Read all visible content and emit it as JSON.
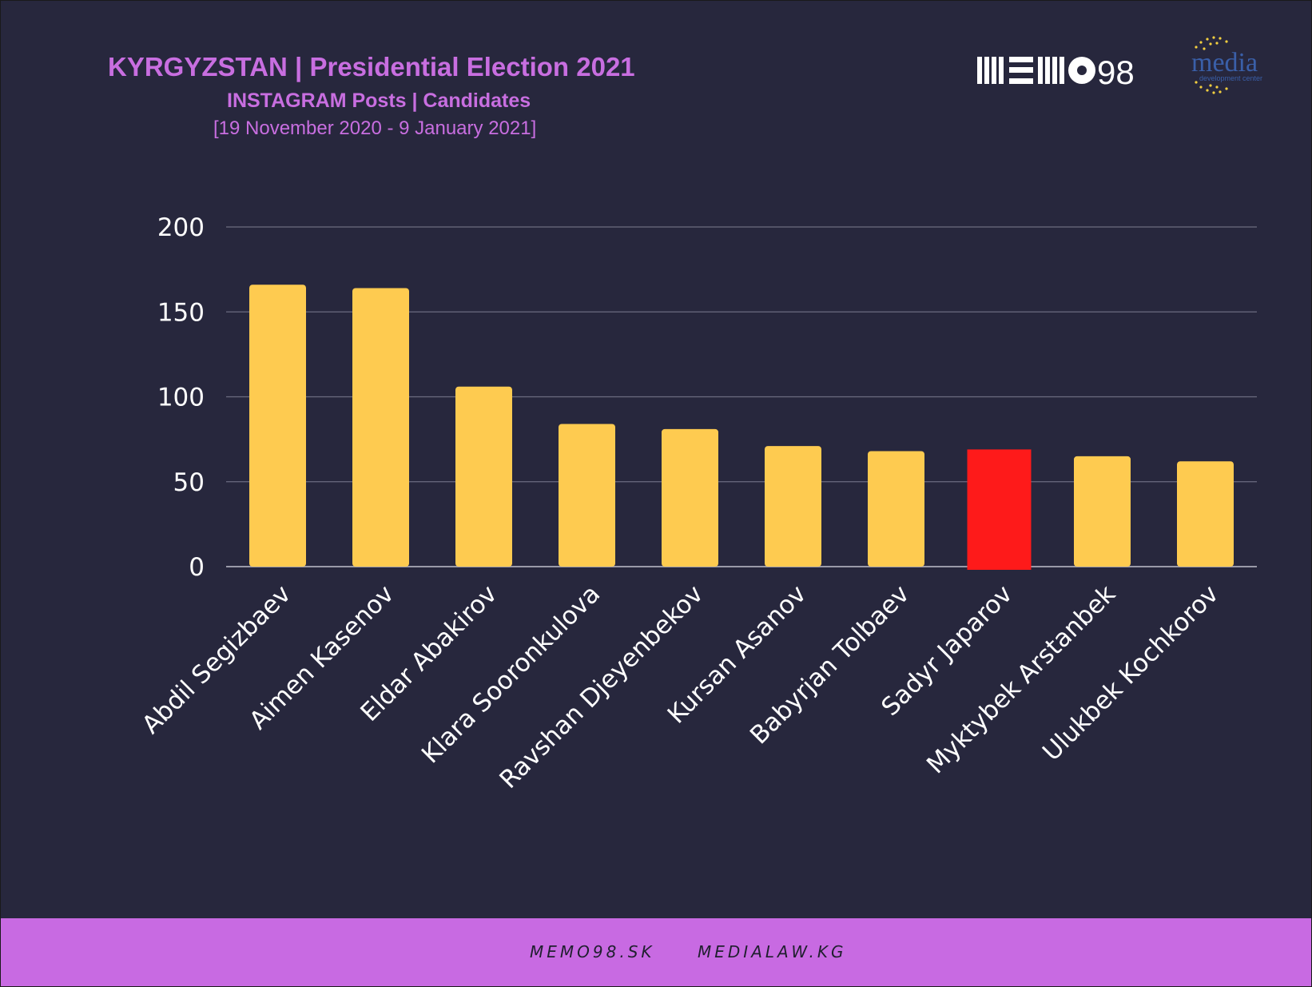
{
  "header": {
    "title": "KYRGYZSTAN | Presidential Election 2021",
    "subtitle": "INSTAGRAM Posts | Candidates",
    "date_range": "[19 November 2020 - 9 January 2021]"
  },
  "logos": {
    "memo98": "MEMO98",
    "media_center": "media",
    "media_center_sub": "development center"
  },
  "footer": {
    "link1": "MEMO98.SK",
    "link2": "MEDIALAW.KG"
  },
  "colors": {
    "background": "#27273d",
    "accent": "#c86ee0",
    "bar": "#fecb50",
    "highlight_bar": "#fe1a1a",
    "footer": "#c86ae2"
  },
  "chart_data": {
    "type": "bar",
    "title": "",
    "xlabel": "",
    "ylabel": "",
    "ylim": [
      0,
      200
    ],
    "yticks": [
      0,
      50,
      100,
      150,
      200
    ],
    "grid": true,
    "categories": [
      "Abdil Segizbaev",
      "Aimen Kasenov",
      "Eldar Abakirov",
      "Klara Sooronkulova",
      "Ravshan Djeyenbekov",
      "Kursan Asanov",
      "Babyrjan Tolbaev",
      "Sadyr Japarov",
      "Myktybek Arstanbek",
      "Ulukbek Kochkorov"
    ],
    "values": [
      166,
      164,
      106,
      84,
      81,
      71,
      68,
      69,
      65,
      62
    ],
    "highlighted": "Sadyr Japarov"
  }
}
